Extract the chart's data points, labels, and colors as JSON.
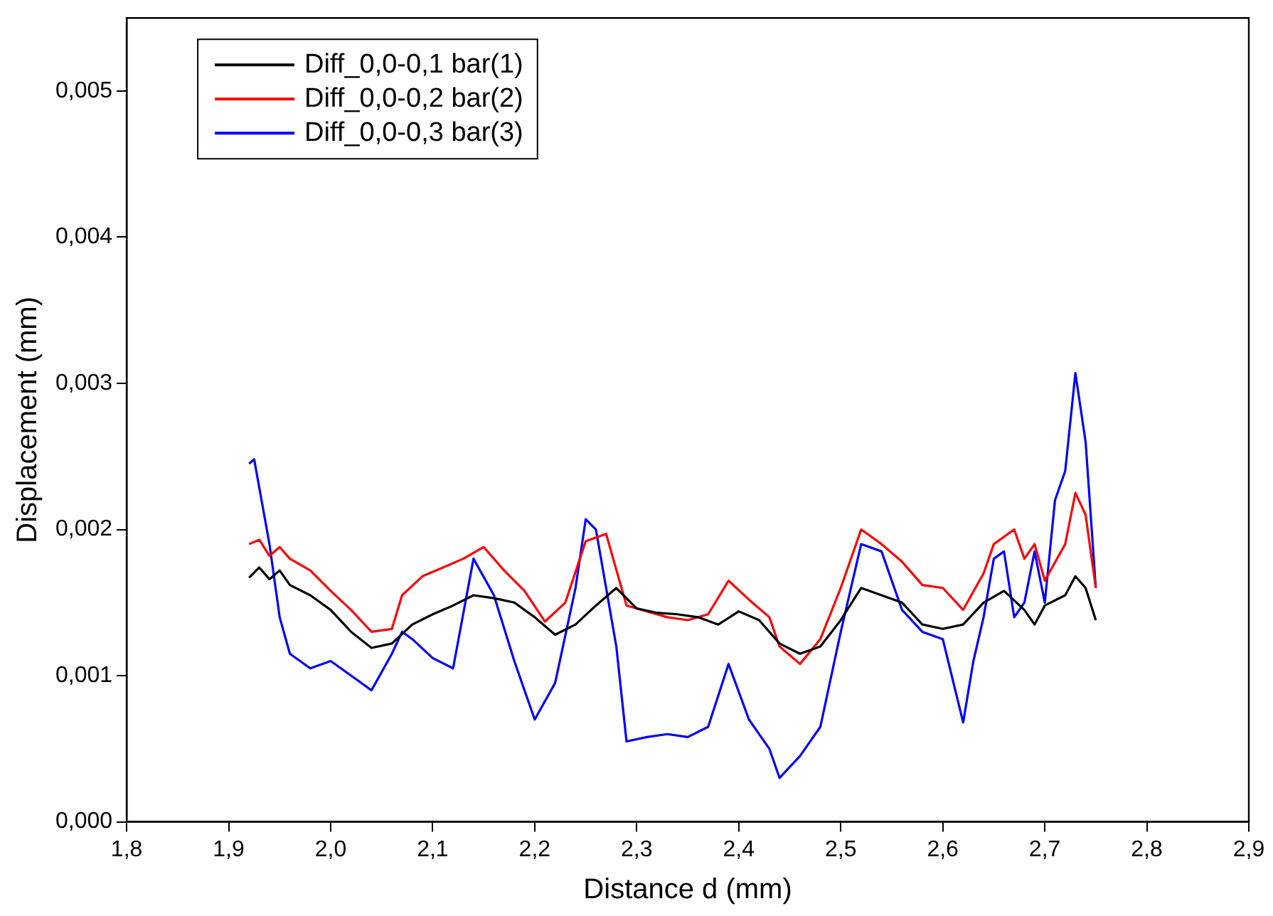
{
  "chart_data": {
    "type": "line",
    "xlabel": "Distance d (mm)",
    "ylabel": "Displacement (mm)",
    "xlim": [
      1.8,
      2.9
    ],
    "xticks": [
      {
        "value": 1.8,
        "label": "1,8"
      },
      {
        "value": 1.9,
        "label": "1,9"
      },
      {
        "value": 2.0,
        "label": "2,0"
      },
      {
        "value": 2.1,
        "label": "2,1"
      },
      {
        "value": 2.2,
        "label": "2,2"
      },
      {
        "value": 2.3,
        "label": "2,3"
      },
      {
        "value": 2.4,
        "label": "2,4"
      },
      {
        "value": 2.5,
        "label": "2,5"
      },
      {
        "value": 2.6,
        "label": "2,6"
      },
      {
        "value": 2.7,
        "label": "2,7"
      },
      {
        "value": 2.8,
        "label": "2,8"
      },
      {
        "value": 2.9,
        "label": "2,9"
      }
    ],
    "ylim": [
      0,
      0.0055
    ],
    "yticks": [
      {
        "value": 0,
        "label": "0,000"
      },
      {
        "value": 0.001,
        "label": "0,001"
      },
      {
        "value": 0.002,
        "label": "0,002"
      },
      {
        "value": 0.003,
        "label": "0,003"
      },
      {
        "value": 0.004,
        "label": "0,004"
      },
      {
        "value": 0.005,
        "label": "0,005"
      }
    ],
    "grid": false,
    "legend": "top left",
    "marker": "none",
    "line_style": "solid",
    "series": [
      {
        "name": "Diff_0,0-0,1 bar(1)",
        "color": "#000000",
        "x": [
          1.92,
          1.93,
          1.94,
          1.95,
          1.96,
          1.98,
          2.0,
          2.02,
          2.04,
          2.06,
          2.08,
          2.1,
          2.12,
          2.14,
          2.16,
          2.18,
          2.2,
          2.22,
          2.24,
          2.26,
          2.28,
          2.3,
          2.32,
          2.34,
          2.36,
          2.38,
          2.4,
          2.42,
          2.44,
          2.46,
          2.48,
          2.5,
          2.52,
          2.54,
          2.56,
          2.58,
          2.6,
          2.62,
          2.64,
          2.66,
          2.68,
          2.69,
          2.7,
          2.72,
          2.73,
          2.74,
          2.75
        ],
        "values": [
          0.00167,
          0.00174,
          0.00166,
          0.00172,
          0.00162,
          0.00155,
          0.00145,
          0.0013,
          0.00119,
          0.00122,
          0.00135,
          0.00142,
          0.00148,
          0.00155,
          0.00153,
          0.0015,
          0.0014,
          0.00128,
          0.00135,
          0.00148,
          0.0016,
          0.00146,
          0.00143,
          0.00142,
          0.0014,
          0.00135,
          0.00144,
          0.00138,
          0.00122,
          0.00115,
          0.0012,
          0.00138,
          0.0016,
          0.00155,
          0.0015,
          0.00135,
          0.00132,
          0.00135,
          0.0015,
          0.00158,
          0.00145,
          0.00135,
          0.00148,
          0.00155,
          0.00168,
          0.0016,
          0.00138
        ]
      },
      {
        "name": "Diff_0,0-0,2 bar(2)",
        "color": "#ff0000",
        "x": [
          1.92,
          1.93,
          1.94,
          1.95,
          1.96,
          1.98,
          2.0,
          2.02,
          2.04,
          2.06,
          2.07,
          2.09,
          2.11,
          2.13,
          2.15,
          2.17,
          2.19,
          2.21,
          2.23,
          2.25,
          2.27,
          2.29,
          2.31,
          2.33,
          2.35,
          2.37,
          2.39,
          2.41,
          2.43,
          2.44,
          2.46,
          2.48,
          2.5,
          2.52,
          2.54,
          2.56,
          2.58,
          2.6,
          2.62,
          2.64,
          2.65,
          2.67,
          2.68,
          2.69,
          2.7,
          2.72,
          2.73,
          2.74,
          2.75
        ],
        "values": [
          0.0019,
          0.00193,
          0.00182,
          0.00188,
          0.0018,
          0.00172,
          0.00158,
          0.00145,
          0.0013,
          0.00132,
          0.00155,
          0.00168,
          0.00174,
          0.0018,
          0.00188,
          0.00172,
          0.00158,
          0.00137,
          0.0015,
          0.00192,
          0.00197,
          0.00148,
          0.00144,
          0.0014,
          0.00138,
          0.00142,
          0.00165,
          0.00152,
          0.0014,
          0.0012,
          0.00108,
          0.00125,
          0.0016,
          0.002,
          0.0019,
          0.00178,
          0.00162,
          0.0016,
          0.00145,
          0.0017,
          0.0019,
          0.002,
          0.0018,
          0.0019,
          0.00165,
          0.0019,
          0.00225,
          0.0021,
          0.0016
        ]
      },
      {
        "name": "Diff_0,0-0,3 bar(3)",
        "color": "#0000ff",
        "x": [
          1.92,
          1.925,
          1.94,
          1.95,
          1.96,
          1.98,
          2.0,
          2.02,
          2.04,
          2.06,
          2.07,
          2.08,
          2.1,
          2.12,
          2.14,
          2.16,
          2.18,
          2.2,
          2.22,
          2.24,
          2.25,
          2.26,
          2.28,
          2.29,
          2.31,
          2.33,
          2.35,
          2.37,
          2.39,
          2.41,
          2.43,
          2.44,
          2.46,
          2.48,
          2.5,
          2.52,
          2.54,
          2.56,
          2.58,
          2.6,
          2.62,
          2.63,
          2.64,
          2.65,
          2.66,
          2.67,
          2.68,
          2.69,
          2.7,
          2.71,
          2.72,
          2.73,
          2.74,
          2.75
        ],
        "values": [
          0.00245,
          0.00248,
          0.0019,
          0.0014,
          0.00115,
          0.00105,
          0.0011,
          0.001,
          0.0009,
          0.00115,
          0.0013,
          0.00125,
          0.00112,
          0.00105,
          0.0018,
          0.00155,
          0.0011,
          0.0007,
          0.00095,
          0.0016,
          0.00207,
          0.002,
          0.0012,
          0.00055,
          0.00058,
          0.0006,
          0.00058,
          0.00065,
          0.00108,
          0.0007,
          0.0005,
          0.0003,
          0.00045,
          0.00065,
          0.0013,
          0.0019,
          0.00185,
          0.00145,
          0.0013,
          0.00125,
          0.00068,
          0.0011,
          0.0014,
          0.0018,
          0.00185,
          0.0014,
          0.0015,
          0.00185,
          0.0015,
          0.0022,
          0.0024,
          0.00307,
          0.0026,
          0.0016
        ]
      }
    ]
  }
}
